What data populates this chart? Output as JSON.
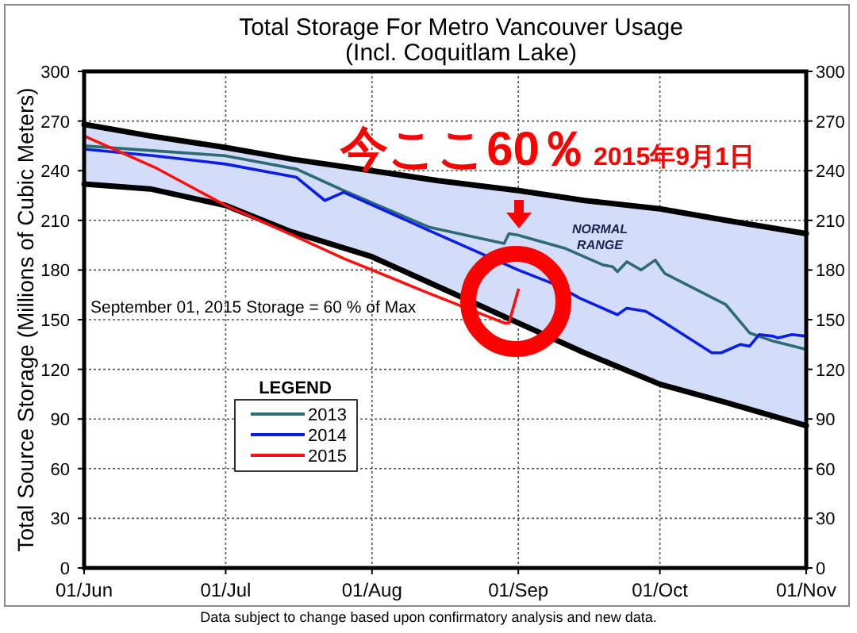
{
  "chart_data": {
    "type": "line",
    "title": "Total Storage For Metro Vancouver Usage",
    "subtitle": "(Incl. Coquitlam Lake)",
    "ylabel": "Total Source Storage  (Millions of Cubic Meters)",
    "xlim": [
      "--06-01",
      "--11-01"
    ],
    "xticks": [
      {
        "value": "--06-01",
        "label": "01/Jun"
      },
      {
        "value": "--07-01",
        "label": "01/Jul"
      },
      {
        "value": "--08-01",
        "label": "01/Aug"
      },
      {
        "value": "--09-01",
        "label": "01/Sep"
      },
      {
        "value": "--10-01",
        "label": "01/Oct"
      },
      {
        "value": "--11-01",
        "label": "01/Nov"
      }
    ],
    "ylim": [
      0,
      300
    ],
    "yticks": [
      0,
      30,
      60,
      90,
      120,
      150,
      180,
      210,
      240,
      270,
      300
    ],
    "y2lim": [
      0,
      300
    ],
    "y2ticks": [
      0,
      30,
      60,
      90,
      120,
      150,
      180,
      210,
      240,
      270,
      300
    ],
    "grid": true,
    "legend": "bottom left",
    "legend_title": "LEGEND",
    "series": [
      {
        "type": "line",
        "color": "#000000",
        "x": [
          "--06-01",
          "--06-15",
          "--07-01",
          "--07-15",
          "--08-01",
          "--08-15",
          "--09-01",
          "--09-15",
          "--10-01",
          "--10-15",
          "--11-01"
        ],
        "values": [
          268,
          261,
          254,
          247,
          240,
          234,
          228,
          222,
          217,
          210,
          202
        ]
      },
      {
        "type": "line",
        "color": "#000000",
        "x": [
          "--06-01",
          "--06-15",
          "--07-01",
          "--07-15",
          "--08-01",
          "--08-15",
          "--09-01",
          "--09-15",
          "--10-01",
          "--10-15",
          "--11-01"
        ],
        "values": [
          232,
          229,
          219,
          203,
          188,
          170,
          148,
          130,
          111,
          100,
          86
        ],
        "lower": [
          232,
          229,
          219,
          203,
          188,
          170,
          148,
          130,
          111,
          100,
          86
        ],
        "upper": [
          268,
          261,
          254,
          247,
          240,
          234,
          228,
          222,
          217,
          210,
          202
        ]
      },
      {
        "name": "2013",
        "color": "#2e6b73",
        "x": [
          "--06-01",
          "--06-16",
          "--07-01",
          "--07-16",
          "--07-26",
          "--08-13",
          "--08-29",
          "--08-30",
          "--09-01",
          "--09-11",
          "--09-19",
          "--09-21",
          "--09-22",
          "--09-24",
          "--09-27",
          "--09-30",
          "--10-02",
          "--10-15",
          "--10-20",
          "--10-25",
          "--11-01"
        ],
        "values": [
          255,
          252,
          249,
          241,
          228,
          206,
          196,
          202,
          201,
          193,
          183,
          182,
          179,
          185,
          180,
          186,
          178,
          159,
          142,
          137,
          132
        ]
      },
      {
        "name": "2014",
        "color": "#0a1ee6",
        "x": [
          "--06-01",
          "--06-16",
          "--07-01",
          "--07-16",
          "--07-22",
          "--07-26",
          "--08-13",
          "--09-01",
          "--09-09",
          "--09-14",
          "--09-22",
          "--09-24",
          "--09-28",
          "--10-01",
          "--10-12",
          "--10-14",
          "--10-18",
          "--10-20",
          "--10-22",
          "--10-25",
          "--10-26",
          "--10-29",
          "--11-01"
        ],
        "values": [
          253,
          249,
          244,
          236,
          222,
          227,
          204,
          180,
          171,
          163,
          153,
          157,
          155,
          150,
          130,
          130,
          135,
          134,
          141,
          140,
          139,
          141,
          140
        ]
      },
      {
        "name": "2015",
        "color": "#ff1010",
        "x": [
          "--06-01",
          "--06-16",
          "--07-01",
          "--07-16",
          "--07-26",
          "--08-01",
          "--08-13",
          "--08-29",
          "--08-30",
          "--09-01"
        ],
        "values": [
          261,
          242,
          219,
          200,
          187,
          180,
          166,
          148,
          148,
          168
        ]
      }
    ],
    "annotations": [
      "September 01, 2015  Storage =   60 % of Max",
      "NORMAL RANGE",
      "今ここ60％",
      "2015年9月1日",
      "Data subject to change based upon confirmatory analysis and new data."
    ]
  }
}
